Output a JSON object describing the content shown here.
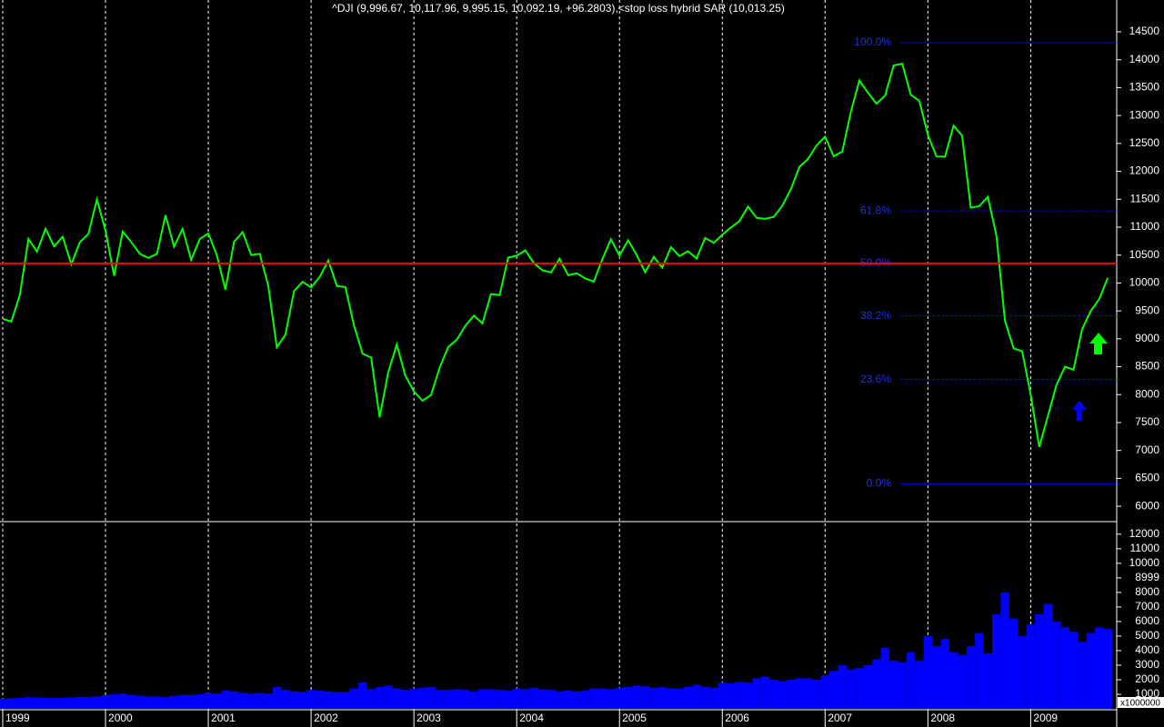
{
  "chart_data": {
    "type": "line",
    "title": "^DJI (9,996.67, 10,117.96, 9,995.15, 10,092.19, +96.2803),<stop loss hybrid SAR (10,013.25)",
    "categories": [
      "1999",
      null,
      null,
      null,
      null,
      null,
      null,
      null,
      null,
      null,
      null,
      null,
      "2000",
      null,
      null,
      null,
      null,
      null,
      null,
      null,
      null,
      null,
      null,
      null,
      "2001",
      null,
      null,
      null,
      null,
      null,
      null,
      null,
      null,
      null,
      null,
      null,
      "2002",
      null,
      null,
      null,
      null,
      null,
      null,
      null,
      null,
      null,
      null,
      null,
      "2003",
      null,
      null,
      null,
      null,
      null,
      null,
      null,
      null,
      null,
      null,
      null,
      "2004",
      null,
      null,
      null,
      null,
      null,
      null,
      null,
      null,
      null,
      null,
      null,
      "2005",
      null,
      null,
      null,
      null,
      null,
      null,
      null,
      null,
      null,
      null,
      null,
      "2006",
      null,
      null,
      null,
      null,
      null,
      null,
      null,
      null,
      null,
      null,
      null,
      "2007",
      null,
      null,
      null,
      null,
      null,
      null,
      null,
      null,
      null,
      null,
      null,
      "2008",
      null,
      null,
      null,
      null,
      null,
      null,
      null,
      null,
      null,
      null,
      null,
      "2009",
      null,
      null,
      null,
      null,
      null,
      null,
      null,
      null,
      null
    ],
    "series": [
      {
        "color": "#00ff00",
        "values": [
          9359,
          9307,
          9786,
          10789,
          10560,
          10970,
          10655,
          10829,
          10337,
          10729,
          10878,
          11497,
          10941,
          10128,
          10922,
          10734,
          10522,
          10448,
          10522,
          11215,
          10651,
          10971,
          10415,
          10787,
          10887,
          10495,
          9879,
          10735,
          10912,
          10502,
          10523,
          9950,
          8848,
          9075,
          9852,
          10022,
          9920,
          10106,
          10404,
          9946,
          9925,
          9243,
          8737,
          8664,
          7592,
          8397,
          8896,
          8342,
          8054,
          7891,
          7992,
          8480,
          8850,
          8985,
          9234,
          9416,
          9275,
          9801,
          9782,
          10454,
          10488,
          10584,
          10358,
          10226,
          10188,
          10435,
          10140,
          10174,
          10080,
          10027,
          10428,
          10783,
          10490,
          10766,
          10504,
          10193,
          10467,
          10275,
          10641,
          10482,
          10569,
          10440,
          10806,
          10718,
          10865,
          10993,
          11109,
          11367,
          11168,
          11150,
          11186,
          11381,
          11679,
          12081,
          12221,
          12463,
          12622,
          12269,
          12354,
          13063,
          13628,
          13409,
          13212,
          13358,
          13896,
          13930,
          13372,
          13265,
          12650,
          12266,
          12263,
          12820,
          12638,
          11350,
          11378,
          11544,
          10851,
          9325,
          8829,
          8776,
          8001,
          7063,
          7609,
          8168,
          8500,
          8447,
          9172,
          9496,
          9712,
          10092
        ]
      }
    ],
    "ylim": [
      5790,
      15070
    ],
    "yticks": [
      6000,
      6500,
      7000,
      7500,
      8000,
      8500,
      9000,
      9500,
      10000,
      10500,
      11000,
      11500,
      12000,
      12500,
      13000,
      13500,
      14000,
      14500
    ],
    "hline": {
      "value": 10350,
      "color": "#ff0000"
    },
    "fib_levels": [
      {
        "label": "100.0%",
        "value": 14305
      },
      {
        "label": "61.8%",
        "value": 11290
      },
      {
        "label": "50.0%",
        "value": 10350
      },
      {
        "label": "38.2%",
        "value": 9410
      },
      {
        "label": "23.6%",
        "value": 8270
      },
      {
        "label": "0.0%",
        "value": 6405
      }
    ],
    "volume": {
      "color": "#0000ff",
      "unit_label": "x1000000",
      "ylim": [
        0,
        12800
      ],
      "yticks": [
        1000,
        2000,
        3000,
        4000,
        5000,
        6000,
        7000,
        8000,
        8999,
        10000,
        11000,
        12000
      ],
      "values": [
        700,
        720,
        750,
        800,
        780,
        760,
        750,
        740,
        780,
        820,
        800,
        850,
        950,
        1000,
        1050,
        950,
        900,
        850,
        850,
        800,
        900,
        950,
        950,
        1000,
        1100,
        1050,
        1250,
        1200,
        1100,
        1050,
        1100,
        1050,
        1500,
        1300,
        1200,
        1150,
        1300,
        1250,
        1200,
        1150,
        1150,
        1400,
        1800,
        1350,
        1500,
        1600,
        1400,
        1300,
        1400,
        1450,
        1500,
        1300,
        1300,
        1350,
        1300,
        1200,
        1350,
        1350,
        1300,
        1250,
        1400,
        1350,
        1450,
        1350,
        1300,
        1200,
        1250,
        1200,
        1250,
        1400,
        1400,
        1350,
        1450,
        1500,
        1600,
        1550,
        1450,
        1500,
        1400,
        1400,
        1500,
        1650,
        1500,
        1450,
        1800,
        1750,
        1850,
        1800,
        2100,
        2200,
        2000,
        1900,
        2000,
        2100,
        2100,
        2000,
        2300,
        2600,
        3000,
        2700,
        2800,
        3000,
        3400,
        4200,
        3300,
        3200,
        3900,
        3300,
        5000,
        4300,
        4800,
        3900,
        3700,
        4300,
        5200,
        3800,
        6500,
        8000,
        6200,
        5000,
        5800,
        6500,
        7200,
        6000,
        5600,
        5300,
        4600,
        5200,
        5600,
        5500
      ]
    },
    "grid": true
  }
}
